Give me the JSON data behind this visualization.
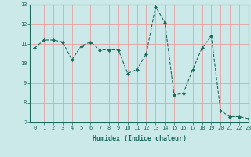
{
  "x": [
    0,
    1,
    2,
    3,
    4,
    5,
    6,
    7,
    8,
    9,
    10,
    11,
    12,
    13,
    14,
    15,
    16,
    17,
    18,
    19,
    20,
    21,
    22,
    23
  ],
  "y": [
    10.8,
    11.2,
    11.2,
    11.1,
    10.2,
    10.9,
    11.1,
    10.7,
    10.7,
    10.7,
    9.5,
    9.7,
    10.5,
    12.9,
    12.1,
    8.4,
    8.5,
    9.7,
    10.8,
    11.4,
    7.6,
    7.3,
    7.3,
    7.2
  ],
  "xlabel": "Humidex (Indice chaleur)",
  "ylim": [
    7,
    13
  ],
  "xlim": [
    -0.5,
    23
  ],
  "yticks": [
    7,
    8,
    9,
    10,
    11,
    12,
    13
  ],
  "xticks": [
    0,
    1,
    2,
    3,
    4,
    5,
    6,
    7,
    8,
    9,
    10,
    11,
    12,
    13,
    14,
    15,
    16,
    17,
    18,
    19,
    20,
    21,
    22,
    23
  ],
  "line_color": "#1a6b5e",
  "marker": "D",
  "marker_size": 2.0,
  "bg_color": "#cce9e9",
  "grid_color": "#e8a0a0",
  "axis_color": "#1a6b5e",
  "tick_color": "#1a6b5e",
  "label_color": "#1a6b5e",
  "tick_fontsize": 5.0,
  "xlabel_fontsize": 6.0
}
